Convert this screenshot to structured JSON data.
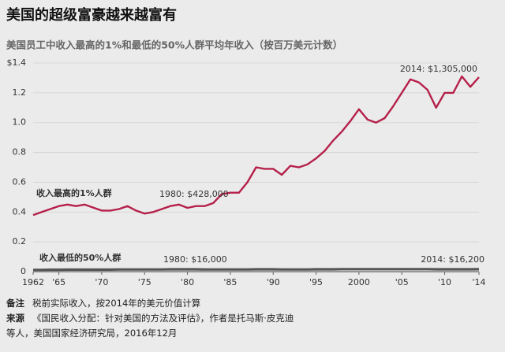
{
  "chart_data": {
    "type": "line",
    "title": "美国的超级富豪越来越富有",
    "subtitle": "美国员工中收入最高的1%和最低的50%人群平均年收入（按百万美元计数）",
    "x": [
      1962,
      1963,
      1964,
      1965,
      1966,
      1967,
      1968,
      1969,
      1970,
      1971,
      1972,
      1973,
      1974,
      1975,
      1976,
      1977,
      1978,
      1979,
      1980,
      1981,
      1982,
      1983,
      1984,
      1985,
      1986,
      1987,
      1988,
      1989,
      1990,
      1991,
      1992,
      1993,
      1994,
      1995,
      1996,
      1997,
      1998,
      1999,
      2000,
      2001,
      2002,
      2003,
      2004,
      2005,
      2006,
      2007,
      2008,
      2009,
      2010,
      2011,
      2012,
      2013,
      2014
    ],
    "series": [
      {
        "name": "收入最高的1%人群",
        "color": "#b5204a",
        "values": [
          0.38,
          0.4,
          0.42,
          0.44,
          0.45,
          0.44,
          0.45,
          0.43,
          0.41,
          0.41,
          0.42,
          0.44,
          0.41,
          0.39,
          0.4,
          0.42,
          0.44,
          0.45,
          0.428,
          0.44,
          0.44,
          0.46,
          0.52,
          0.53,
          0.53,
          0.6,
          0.7,
          0.69,
          0.69,
          0.65,
          0.71,
          0.7,
          0.72,
          0.76,
          0.81,
          0.88,
          0.94,
          1.01,
          1.09,
          1.02,
          1.0,
          1.03,
          1.11,
          1.2,
          1.29,
          1.27,
          1.22,
          1.1,
          1.2,
          1.2,
          1.31,
          1.24,
          1.305
        ]
      },
      {
        "name": "收入最低的50%人群",
        "color": "#555555",
        "values": [
          0.012,
          0.012,
          0.013,
          0.013,
          0.014,
          0.014,
          0.014,
          0.014,
          0.014,
          0.014,
          0.015,
          0.015,
          0.015,
          0.015,
          0.015,
          0.015,
          0.016,
          0.016,
          0.016,
          0.016,
          0.015,
          0.015,
          0.015,
          0.015,
          0.015,
          0.015,
          0.016,
          0.016,
          0.016,
          0.015,
          0.015,
          0.015,
          0.015,
          0.016,
          0.016,
          0.016,
          0.017,
          0.017,
          0.017,
          0.017,
          0.017,
          0.017,
          0.017,
          0.017,
          0.017,
          0.017,
          0.017,
          0.016,
          0.016,
          0.016,
          0.016,
          0.016,
          0.0162
        ]
      }
    ],
    "annotations": [
      "2014: $1,305,000",
      "1980: $428,000",
      "1980: $16,000",
      "2014: $16,200"
    ],
    "xlim": [
      1962,
      2014
    ],
    "xticks": [
      {
        "value": 1962,
        "label": "1962"
      },
      {
        "value": 1965,
        "label": "'65"
      },
      {
        "value": 1970,
        "label": "'70"
      },
      {
        "value": 1975,
        "label": "'75"
      },
      {
        "value": 1980,
        "label": "'80"
      },
      {
        "value": 1985,
        "label": "'85"
      },
      {
        "value": 1990,
        "label": "'90"
      },
      {
        "value": 1995,
        "label": "'95"
      },
      {
        "value": 2000,
        "label": "2000"
      },
      {
        "value": 2005,
        "label": "'05"
      },
      {
        "value": 2010,
        "label": "'10"
      },
      {
        "value": 2014,
        "label": "'14"
      }
    ],
    "ylim": [
      0,
      1.4
    ],
    "yticks": [
      0,
      0.2,
      0.4,
      0.6,
      0.8,
      {
        "value": 1.0,
        "label": "1.0"
      },
      1.2,
      {
        "value": 1.4,
        "label": "$1.4"
      }
    ],
    "grid": true,
    "note_label": "备注",
    "note": "税前实际收入，按2014年的美元价值计算",
    "source_label": "来源",
    "source": "《国民收入分配：针对美国的方法及评估》，作者是托马斯·皮克迪等人，美国国家经济研究局，2016年12月"
  }
}
